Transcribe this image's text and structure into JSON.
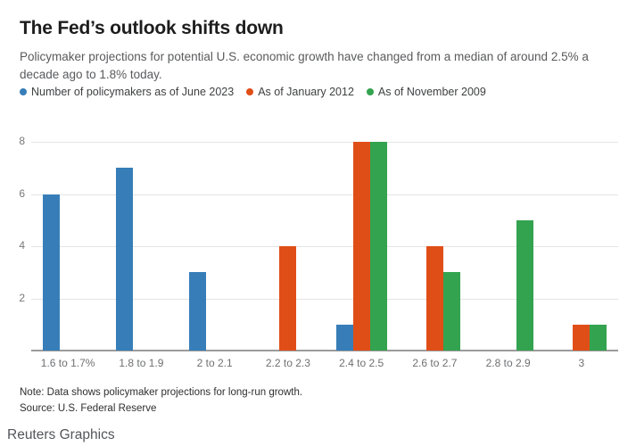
{
  "header": {
    "title": "The Fed’s outlook shifts down",
    "subtitle": "Policymaker projections for potential U.S. economic growth have changed from a median of around 2.5% a decade ago to 1.8% today."
  },
  "chart_data": {
    "type": "bar",
    "title": "The Fed’s outlook shifts down",
    "categories": [
      "1.6 to 1.7%",
      "1.8 to 1.9",
      "2 to 2.1",
      "2.2 to 2.3",
      "2.4 to 2.5",
      "2.6 to 2.7",
      "2.8 to 2.9",
      "3"
    ],
    "series": [
      {
        "name": "Number of policymakers as of June 2023",
        "color": "#377eb8",
        "values": [
          6,
          7,
          3,
          0,
          1,
          0,
          0,
          0
        ]
      },
      {
        "name": "As of January 2012",
        "color": "#e04e18",
        "values": [
          0,
          0,
          0,
          4,
          8,
          4,
          0,
          1
        ]
      },
      {
        "name": "As of November 2009",
        "color": "#33a34f",
        "values": [
          0,
          0,
          0,
          0,
          8,
          3,
          5,
          1
        ]
      }
    ],
    "xlabel": "",
    "ylabel": "",
    "ylim": [
      0,
      8
    ],
    "yticks": [
      2,
      4,
      6,
      8
    ],
    "grid": true,
    "legend_position": "top",
    "bar_gap_within_group": 0
  },
  "footer": {
    "note": "Note: Data shows policymaker projections for long-run growth.",
    "source": "Source: U.S. Federal Reserve",
    "credit": "Reuters Graphics"
  },
  "colors": {
    "background": "#ffffff",
    "gridline": "#e4e4e4",
    "axis_line": "#9b9b9b",
    "title_text": "#1d1d1d",
    "subtitle_text": "#595a5c",
    "tick_text": "#6f7072"
  }
}
